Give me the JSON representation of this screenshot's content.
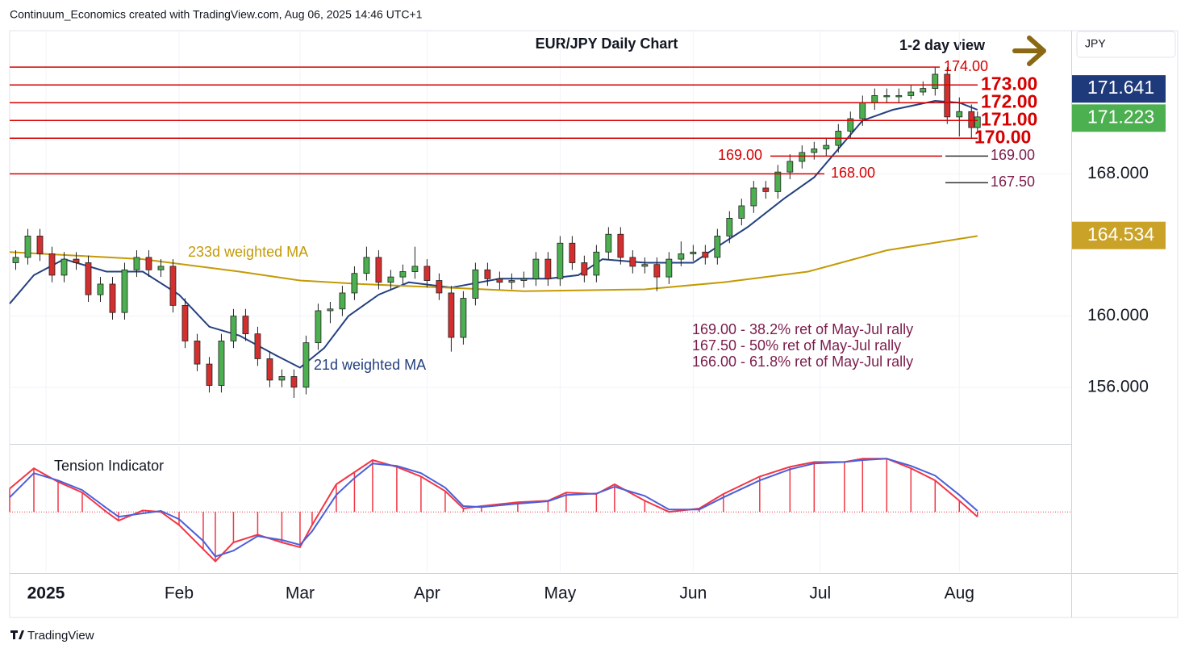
{
  "header": {
    "credit": "Continuum_Economics created with TradingView.com, Aug 06, 2025 14:46 UTC+1"
  },
  "footer": {
    "brand": "TradingView"
  },
  "chart_data": [
    {
      "type": "candlestick",
      "title": "EUR/JPY Daily Chart",
      "note": "1-2 day view",
      "currency": "JPY",
      "xlim": [
        -6,
        169.5
      ],
      "xticks": [
        {
          "value": 0,
          "label": "2025"
        },
        {
          "value": 22,
          "label": "Feb"
        },
        {
          "value": 42,
          "label": "Mar"
        },
        {
          "value": 63,
          "label": "Apr"
        },
        {
          "value": 85,
          "label": "May"
        },
        {
          "value": 107,
          "label": "Jun"
        },
        {
          "value": 128,
          "label": "Jul"
        },
        {
          "value": 151,
          "label": "Aug"
        }
      ],
      "ylim": [
        152.9,
        176.05
      ],
      "yticks": [
        {
          "value": 156,
          "label": "156.000"
        },
        {
          "value": 160,
          "label": "160.000"
        },
        {
          "value": 168,
          "label": "168.000"
        }
      ],
      "grid": true,
      "up_color": "#4caf50",
      "down_color": "#d32f2f",
      "x": [
        -5,
        -3,
        -1,
        1,
        3,
        5,
        7,
        9,
        11,
        13,
        15,
        17,
        19,
        21,
        23,
        25,
        27,
        29,
        31,
        33,
        35,
        37,
        39,
        41,
        43,
        45,
        47,
        49,
        51,
        53,
        55,
        57,
        59,
        61,
        63,
        65,
        67,
        69,
        71,
        73,
        75,
        77,
        79,
        81,
        83,
        85,
        87,
        89,
        91,
        93,
        95,
        97,
        99,
        101,
        103,
        105,
        107,
        109,
        111,
        113,
        115,
        117,
        119,
        121,
        123,
        125,
        127,
        129,
        131,
        133,
        135,
        137,
        139,
        141,
        143,
        145,
        147,
        149,
        151,
        153,
        154
      ],
      "open": [
        163.0,
        163.3,
        164.5,
        163.5,
        162.3,
        163.2,
        163.0,
        161.2,
        161.8,
        160.2,
        162.6,
        163.3,
        162.6,
        162.8,
        160.6,
        158.6,
        157.3,
        156.1,
        158.6,
        160.0,
        159.0,
        157.6,
        156.4,
        156.6,
        156.0,
        158.5,
        160.3,
        160.4,
        161.3,
        162.4,
        163.3,
        161.9,
        162.2,
        162.5,
        162.8,
        162.0,
        161.3,
        158.8,
        161.0,
        162.6,
        162.1,
        161.9,
        162.0,
        162.1,
        163.2,
        162.1,
        164.1,
        163.0,
        162.3,
        163.6,
        164.6,
        163.3,
        162.8,
        162.9,
        162.2,
        163.2,
        163.5,
        163.6,
        163.3,
        164.5,
        165.5,
        166.2,
        167.2,
        167.0,
        168.1,
        168.7,
        169.2,
        169.4,
        169.6,
        170.4,
        171.1,
        172.0,
        172.4,
        172.4,
        172.4,
        172.6,
        172.8,
        173.6,
        171.2,
        171.5,
        170.6
      ],
      "high": [
        163.7,
        164.9,
        164.9,
        163.9,
        163.6,
        163.6,
        163.4,
        162.2,
        162.2,
        163.0,
        163.7,
        163.7,
        163.2,
        163.2,
        161.0,
        159.0,
        157.7,
        159.0,
        160.4,
        160.4,
        159.4,
        158.0,
        157.0,
        157.0,
        158.9,
        160.7,
        160.8,
        161.7,
        162.8,
        163.9,
        163.7,
        162.6,
        162.9,
        163.9,
        163.2,
        162.4,
        161.7,
        161.4,
        163.0,
        163.0,
        162.5,
        162.4,
        162.5,
        163.6,
        163.6,
        164.5,
        164.5,
        163.4,
        164.0,
        165.0,
        165.0,
        163.7,
        163.3,
        163.3,
        163.6,
        164.2,
        164.0,
        164.0,
        164.9,
        165.9,
        166.6,
        167.6,
        167.6,
        168.5,
        169.1,
        169.6,
        169.8,
        170.0,
        170.8,
        171.5,
        172.4,
        172.8,
        172.8,
        172.8,
        173.0,
        173.2,
        174.0,
        174.0,
        172.3,
        171.9,
        171.5
      ],
      "low": [
        162.6,
        162.9,
        163.1,
        161.9,
        161.9,
        162.6,
        160.8,
        160.8,
        159.8,
        159.8,
        162.2,
        162.2,
        162.2,
        160.2,
        158.2,
        156.9,
        155.7,
        155.7,
        158.2,
        158.6,
        157.2,
        156.0,
        156.0,
        155.4,
        155.6,
        158.1,
        159.6,
        160.0,
        160.9,
        162.0,
        161.5,
        161.5,
        161.8,
        162.1,
        161.6,
        160.9,
        158.0,
        158.4,
        160.6,
        161.7,
        161.5,
        161.5,
        161.6,
        161.7,
        161.7,
        161.7,
        162.6,
        161.9,
        161.9,
        163.2,
        162.9,
        162.4,
        162.4,
        161.4,
        161.8,
        162.8,
        163.1,
        162.9,
        162.9,
        164.1,
        165.1,
        165.8,
        166.6,
        166.6,
        167.7,
        168.3,
        168.8,
        169.0,
        169.2,
        170.0,
        170.7,
        171.6,
        172.0,
        172.0,
        172.2,
        172.4,
        172.4,
        170.8,
        170.1,
        170.0,
        170.3
      ],
      "close": [
        163.3,
        164.5,
        163.5,
        162.3,
        163.2,
        163.0,
        161.2,
        161.8,
        160.2,
        162.6,
        163.3,
        162.6,
        162.8,
        160.6,
        158.6,
        157.3,
        156.1,
        158.6,
        160.0,
        159.0,
        157.6,
        156.4,
        156.6,
        156.0,
        158.5,
        160.3,
        160.4,
        161.3,
        162.4,
        163.3,
        161.9,
        162.2,
        162.5,
        162.8,
        162.0,
        161.3,
        158.8,
        161.0,
        162.6,
        162.1,
        161.9,
        162.0,
        162.1,
        163.2,
        162.1,
        164.1,
        163.0,
        162.3,
        163.6,
        164.6,
        163.3,
        162.8,
        162.9,
        162.2,
        163.2,
        163.5,
        163.6,
        163.3,
        164.5,
        165.5,
        166.2,
        167.2,
        167.0,
        168.1,
        168.7,
        169.2,
        169.4,
        169.6,
        170.4,
        171.1,
        172.0,
        172.4,
        172.4,
        172.4,
        172.6,
        172.8,
        173.6,
        171.2,
        171.5,
        170.6,
        171.2
      ],
      "series": [
        {
          "name": "21d weighted MA",
          "color": "#24407f",
          "x": [
            -6,
            -2,
            3,
            10,
            16,
            22,
            27,
            32,
            38,
            42,
            46,
            50,
            55,
            60,
            67,
            75,
            83,
            88,
            92,
            99,
            107,
            111,
            116,
            122,
            127,
            131,
            135,
            140,
            147,
            151,
            154
          ],
          "values": [
            160.7,
            162.3,
            163.2,
            162.5,
            162.5,
            161.2,
            159.4,
            158.9,
            157.8,
            157.1,
            158.2,
            160.0,
            161.2,
            161.9,
            161.6,
            162.1,
            162.1,
            162.3,
            163.2,
            163.0,
            163.0,
            163.9,
            165.0,
            166.6,
            167.8,
            169.4,
            171.0,
            171.6,
            172.1,
            172.0,
            171.6
          ]
        },
        {
          "name": "233d weighted MA",
          "color": "#c49a06",
          "x": [
            -6,
            16,
            32,
            42,
            52,
            66,
            79,
            99,
            112,
            126,
            139,
            154
          ],
          "values": [
            163.6,
            163.2,
            162.5,
            162.0,
            161.8,
            161.6,
            161.4,
            161.5,
            161.9,
            162.5,
            163.7,
            164.5
          ]
        }
      ],
      "levels": [
        {
          "value": 174,
          "label": "174.00"
        },
        {
          "value": 173,
          "label": "173.00"
        },
        {
          "value": 172,
          "label": "172.00"
        },
        {
          "value": 171,
          "label": "171.00"
        },
        {
          "value": 170,
          "label": "170.00"
        },
        {
          "value": 169,
          "label": "169.00"
        },
        {
          "value": 168,
          "label": "168.00"
        }
      ],
      "level_color": "#d50000",
      "retracements": [
        {
          "value": 169,
          "label": "169.00"
        },
        {
          "value": 167.5,
          "label": "167.50"
        }
      ],
      "retracement_color": "#7b1c4c",
      "annotations": [
        "169.00 - 38.2% ret of May-Jul rally",
        "167.50 - 50% ret of May-Jul rally",
        "166.00 - 61.8% ret of May-Jul rally"
      ],
      "last_values": [
        {
          "value": 171.641,
          "label": "171.641",
          "color": "#1f3a7a"
        },
        {
          "value": 171.223,
          "label": "171.223",
          "color": "#4caf50"
        },
        {
          "value": 164.534,
          "label": "164.534",
          "color": "#c9a227"
        }
      ]
    },
    {
      "type": "line",
      "title": "Tension Indicator",
      "ylim": [
        -1.23,
        1.37
      ],
      "histogram": true,
      "x": [
        -6,
        -2,
        2,
        6,
        10,
        12,
        16,
        19,
        22,
        26,
        28,
        31,
        35,
        39,
        42,
        44,
        48,
        51,
        54,
        58,
        62,
        66,
        69,
        72,
        78,
        83,
        86,
        91,
        94,
        99,
        103,
        108,
        112,
        118,
        123,
        127,
        132,
        135,
        139,
        143,
        147,
        151,
        154
      ],
      "series": [
        {
          "color": "#f23645",
          "values": [
            0.48,
            0.9,
            0.62,
            0.4,
            0,
            -0.18,
            0.03,
            0,
            -0.27,
            -0.77,
            -1.02,
            -0.63,
            -0.47,
            -0.63,
            -0.73,
            -0.27,
            0.57,
            0.82,
            1.07,
            0.93,
            0.73,
            0.43,
            0.07,
            0.12,
            0.2,
            0.23,
            0.4,
            0.37,
            0.57,
            0.23,
            0,
            0.07,
            0.37,
            0.73,
            0.93,
            1.03,
            1.03,
            1.1,
            1.1,
            0.9,
            0.65,
            0.23,
            -0.1
          ]
        },
        {
          "color": "#4b5fd8",
          "values": [
            0.3,
            0.8,
            0.65,
            0.45,
            0.08,
            -0.1,
            -0.03,
            0.02,
            -0.15,
            -0.6,
            -0.92,
            -0.8,
            -0.5,
            -0.58,
            -0.68,
            -0.4,
            0.35,
            0.7,
            1.0,
            0.95,
            0.8,
            0.5,
            0.12,
            0.1,
            0.17,
            0.22,
            0.35,
            0.38,
            0.52,
            0.33,
            0.05,
            0.05,
            0.3,
            0.65,
            0.88,
            1.0,
            1.03,
            1.07,
            1.1,
            0.95,
            0.75,
            0.35,
            0.02
          ]
        }
      ]
    }
  ]
}
